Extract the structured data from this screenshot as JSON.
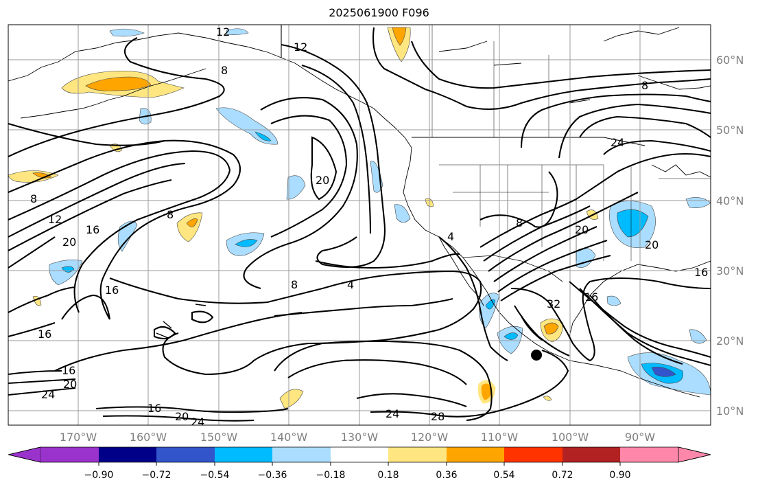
{
  "title": "2025061900 F096",
  "latitude_labels": [
    "60°N",
    "50°N",
    "40°N",
    "30°N",
    "20°N",
    "10°N"
  ],
  "longitude_labels": [
    "170°W",
    "160°W",
    "150°W",
    "140°W",
    "130°W",
    "120°W",
    "110°W",
    "100°W",
    "90°W"
  ],
  "contour_labels": [
    {
      "text": "12",
      "id": "c12a"
    },
    {
      "text": "12",
      "id": "c12b"
    },
    {
      "text": "8",
      "id": "c8a"
    },
    {
      "text": "8",
      "id": "c8b"
    },
    {
      "text": "8",
      "id": "c8c"
    },
    {
      "text": "8",
      "id": "c8d"
    },
    {
      "text": "12",
      "id": "c12c"
    },
    {
      "text": "20",
      "id": "c20a"
    },
    {
      "text": "16",
      "id": "c16a"
    },
    {
      "text": "16",
      "id": "c16b"
    },
    {
      "text": "16",
      "id": "c16c"
    },
    {
      "text": "20",
      "id": "c20b"
    },
    {
      "text": "8",
      "id": "c8e"
    },
    {
      "text": "4",
      "id": "c4a"
    },
    {
      "text": "16",
      "id": "c16d"
    },
    {
      "text": "20",
      "id": "c20c"
    },
    {
      "text": "24",
      "id": "c24a"
    },
    {
      "text": "16",
      "id": "c16e"
    },
    {
      "text": "20",
      "id": "c20d"
    },
    {
      "text": "24",
      "id": "c24b"
    },
    {
      "text": "24",
      "id": "c24c"
    },
    {
      "text": "28",
      "id": "c28a"
    },
    {
      "text": "32",
      "id": "c32a"
    },
    {
      "text": "16",
      "id": "c16f"
    },
    {
      "text": "20",
      "id": "c20e"
    },
    {
      "text": "24",
      "id": "c24d"
    },
    {
      "text": "20",
      "id": "c20f"
    },
    {
      "text": "8",
      "id": "c8f"
    },
    {
      "text": "4",
      "id": "c4b"
    },
    {
      "text": "16",
      "id": "c16g"
    }
  ],
  "colorbar": {
    "tick_labels": [
      "−0.90",
      "−0.72",
      "−0.54",
      "−0.36",
      "−0.18",
      "0.18",
      "0.36",
      "0.54",
      "0.72",
      "0.90"
    ],
    "colors": [
      "#9933cc",
      "#000088",
      "#3355cc",
      "#00bbff",
      "#aaddff",
      "#ffffff",
      "#ffe680",
      "#ffa500",
      "#ff3300",
      "#b22222",
      "#ff88aa"
    ]
  },
  "marker_color": "#000000"
}
